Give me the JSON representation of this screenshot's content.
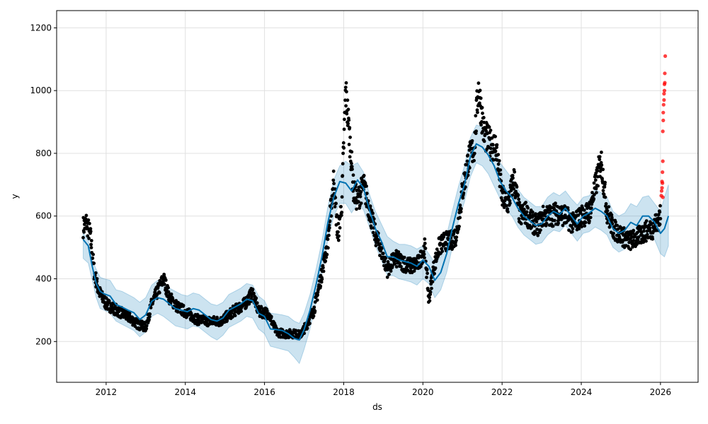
{
  "chart_data": {
    "type": "scatter",
    "title": "",
    "xlabel": "ds",
    "ylabel": "y",
    "xlim": [
      2010.75,
      2026.95
    ],
    "ylim": [
      70,
      1255
    ],
    "grid": true,
    "x_ticks": [
      "2012",
      "2014",
      "2016",
      "2018",
      "2020",
      "2022",
      "2024",
      "2026"
    ],
    "y_ticks": [
      "200",
      "400",
      "600",
      "800",
      "1000",
      "1200"
    ],
    "colors": {
      "observed": "#000000",
      "forecast": "#0072b2",
      "interval": "#0072b2",
      "outliers": "#ff0000"
    },
    "series": [
      {
        "role": "forecast",
        "x": [
          2011.42,
          2011.55,
          2011.65,
          2011.75,
          2011.85,
          2011.95,
          2012.1,
          2012.25,
          2012.4,
          2012.55,
          2012.7,
          2012.85,
          2013.0,
          2013.15,
          2013.3,
          2013.45,
          2013.6,
          2013.75,
          2013.9,
          2014.05,
          2014.2,
          2014.35,
          2014.5,
          2014.65,
          2014.8,
          2014.95,
          2015.1,
          2015.25,
          2015.4,
          2015.55,
          2015.7,
          2015.85,
          2016.0,
          2016.15,
          2016.3,
          2016.45,
          2016.6,
          2016.75,
          2016.88,
          2017.0,
          2017.15,
          2017.3,
          2017.45,
          2017.6,
          2017.75,
          2017.9,
          2018.05,
          2018.2,
          2018.35,
          2018.5,
          2018.65,
          2018.8,
          2018.95,
          2019.1,
          2019.25,
          2019.4,
          2019.55,
          2019.7,
          2019.85,
          2020.0,
          2020.15,
          2020.3,
          2020.45,
          2020.6,
          2020.75,
          2020.9,
          2021.05,
          2021.2,
          2021.35,
          2021.5,
          2021.65,
          2021.8,
          2021.95,
          2022.1,
          2022.25,
          2022.4,
          2022.55,
          2022.7,
          2022.85,
          2023.0,
          2023.15,
          2023.3,
          2023.45,
          2023.6,
          2023.75,
          2023.9,
          2024.05,
          2024.2,
          2024.35,
          2024.5,
          2024.65,
          2024.8,
          2024.95,
          2025.1,
          2025.25,
          2025.4,
          2025.55,
          2025.7,
          2025.85,
          2026.0,
          2026.1,
          2026.2
        ],
        "y": [
          525,
          505,
          440,
          385,
          360,
          352,
          345,
          318,
          310,
          300,
          292,
          270,
          285,
          328,
          340,
          335,
          320,
          305,
          300,
          295,
          305,
          300,
          285,
          270,
          265,
          275,
          300,
          310,
          320,
          335,
          330,
          290,
          280,
          240,
          238,
          235,
          225,
          210,
          205,
          238,
          300,
          380,
          470,
          580,
          660,
          710,
          705,
          680,
          715,
          690,
          620,
          560,
          520,
          470,
          470,
          460,
          455,
          450,
          440,
          460,
          440,
          395,
          420,
          480,
          565,
          640,
          700,
          790,
          830,
          820,
          795,
          760,
          710,
          680,
          660,
          625,
          600,
          585,
          570,
          575,
          600,
          615,
          605,
          625,
          600,
          575,
          600,
          610,
          625,
          615,
          600,
          560,
          545,
          555,
          580,
          570,
          600,
          600,
          580,
          545,
          560,
          600
        ]
      },
      {
        "role": "interval",
        "upper": [
          545,
          525,
          460,
          430,
          405,
          400,
          395,
          365,
          360,
          350,
          340,
          325,
          340,
          380,
          395,
          390,
          370,
          360,
          350,
          345,
          355,
          350,
          335,
          320,
          315,
          325,
          350,
          360,
          370,
          385,
          380,
          345,
          330,
          290,
          288,
          285,
          280,
          265,
          258,
          290,
          350,
          430,
          520,
          630,
          715,
          760,
          775,
          760,
          770,
          740,
          670,
          615,
          575,
          535,
          520,
          510,
          510,
          505,
          495,
          505,
          480,
          450,
          470,
          540,
          620,
          695,
          760,
          850,
          890,
          885,
          855,
          815,
          770,
          745,
          720,
          685,
          660,
          645,
          630,
          630,
          660,
          675,
          665,
          680,
          655,
          635,
          660,
          665,
          685,
          675,
          660,
          615,
          600,
          610,
          640,
          630,
          660,
          665,
          640,
          615,
          660,
          700
        ],
        "lower": [
          465,
          450,
          395,
          340,
          305,
          300,
          290,
          265,
          255,
          245,
          235,
          215,
          230,
          280,
          290,
          280,
          265,
          250,
          245,
          240,
          250,
          245,
          230,
          215,
          205,
          220,
          245,
          255,
          265,
          280,
          275,
          240,
          225,
          185,
          180,
          175,
          170,
          150,
          130,
          175,
          240,
          325,
          415,
          525,
          600,
          640,
          640,
          610,
          640,
          620,
          565,
          505,
          460,
          410,
          410,
          400,
          395,
          390,
          380,
          400,
          385,
          340,
          365,
          420,
          505,
          585,
          645,
          725,
          770,
          760,
          735,
          695,
          655,
          620,
          600,
          565,
          540,
          525,
          510,
          515,
          540,
          555,
          550,
          570,
          545,
          520,
          545,
          550,
          565,
          555,
          540,
          500,
          485,
          495,
          520,
          510,
          540,
          545,
          525,
          480,
          470,
          505
        ]
      },
      {
        "role": "outliers",
        "x": [
          2026.02,
          2026.03,
          2026.04,
          2026.05,
          2026.05,
          2026.06,
          2026.06,
          2026.07,
          2026.07,
          2026.08,
          2026.09,
          2026.09,
          2026.1,
          2026.1,
          2026.11,
          2026.11,
          2026.12,
          2026.06,
          2026.04
        ],
        "y": [
          665,
          680,
          690,
          705,
          740,
          775,
          870,
          905,
          930,
          955,
          970,
          990,
          1000,
          1020,
          1025,
          1055,
          1110,
          660,
          710
        ]
      }
    ],
    "observed_anchors": {
      "x": [
        2011.42,
        2011.5,
        2011.6,
        2011.7,
        2011.8,
        2011.9,
        2012.0,
        2012.2,
        2012.4,
        2012.6,
        2012.8,
        2013.0,
        2013.15,
        2013.3,
        2013.45,
        2013.6,
        2013.8,
        2014.0,
        2014.3,
        2014.6,
        2014.9,
        2015.2,
        2015.5,
        2015.7,
        2015.85,
        2016.1,
        2016.3,
        2016.5,
        2016.75,
        2016.9,
        2017.05,
        2017.25,
        2017.45,
        2017.6,
        2017.75,
        2017.85,
        2017.95,
        2018.05,
        2018.15,
        2018.25,
        2018.35,
        2018.5,
        2018.65,
        2018.8,
        2018.95,
        2019.1,
        2019.3,
        2019.5,
        2019.7,
        2019.9,
        2020.05,
        2020.15,
        2020.25,
        2020.4,
        2020.55,
        2020.7,
        2020.85,
        2021.0,
        2021.15,
        2021.3,
        2021.4,
        2021.55,
        2021.7,
        2021.85,
        2022.0,
        2022.15,
        2022.3,
        2022.45,
        2022.6,
        2022.75,
        2022.9,
        2023.05,
        2023.2,
        2023.4,
        2023.6,
        2023.8,
        2024.0,
        2024.2,
        2024.35,
        2024.5,
        2024.65,
        2024.8,
        2025.0,
        2025.2,
        2025.4,
        2025.6,
        2025.8,
        2026.0
      ],
      "y": [
        565,
        580,
        540,
        420,
        365,
        340,
        320,
        305,
        290,
        275,
        255,
        245,
        320,
        360,
        400,
        340,
        310,
        295,
        270,
        265,
        265,
        295,
        320,
        355,
        295,
        290,
        230,
        225,
        225,
        220,
        250,
        300,
        420,
        520,
        720,
        530,
        640,
        1000,
        850,
        680,
        650,
        700,
        620,
        540,
        490,
        430,
        465,
        450,
        440,
        450,
        500,
        330,
        420,
        500,
        520,
        520,
        540,
        680,
        780,
        820,
        1010,
        860,
        830,
        820,
        660,
        640,
        720,
        600,
        610,
        580,
        570,
        600,
        600,
        610,
        600,
        575,
        600,
        610,
        690,
        780,
        615,
        560,
        540,
        520,
        530,
        550,
        560,
        600
      ]
    }
  }
}
